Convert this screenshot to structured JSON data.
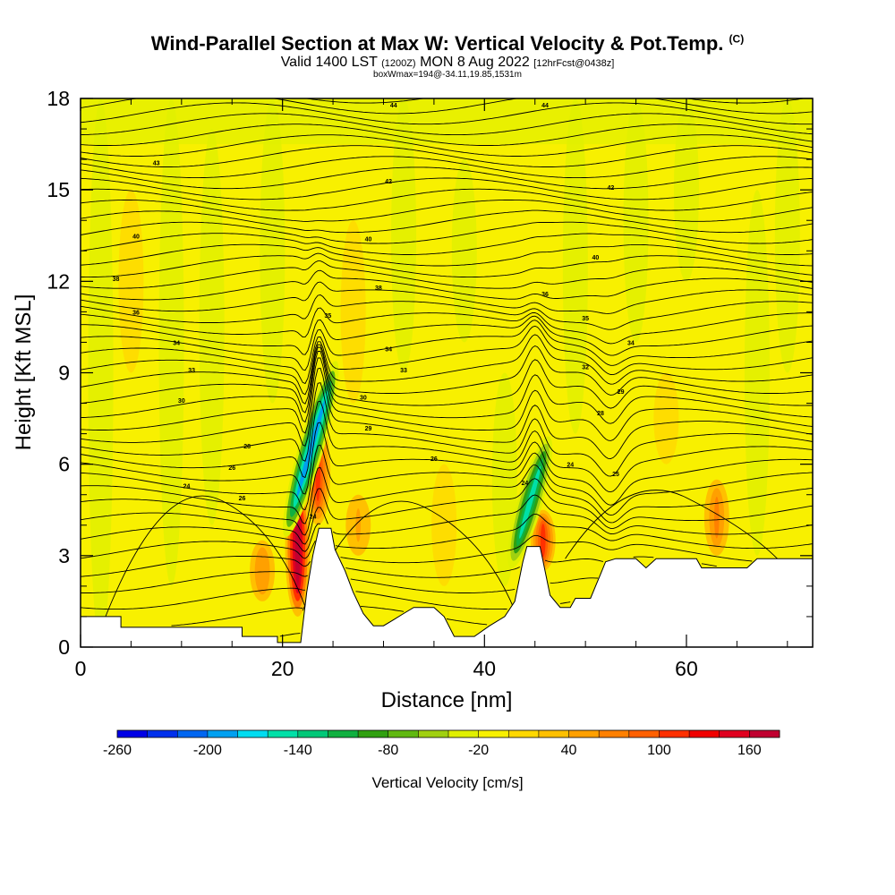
{
  "title": {
    "main": "Wind-Parallel Section at Max W: Vertical Velocity & Pot.Temp.",
    "copyright": "(C)",
    "valid_prefix": "Valid 1400 LST",
    "valid_utc": "(1200Z)",
    "valid_date": "MON 8 Aug 2022",
    "forecast": "[12hrFcst@0438z]",
    "box_info": "boxWmax=194@-34.11,19.85,1531m"
  },
  "chart_data": {
    "type": "heatmap",
    "title": "Wind-Parallel Section at Max W: Vertical Velocity & Pot.Temp.",
    "xlabel": "Distance [nm]",
    "ylabel": "Height [Kft MSL]",
    "xlim": [
      0,
      72.5
    ],
    "ylim": [
      0,
      18
    ],
    "x_ticks": [
      "0",
      "20",
      "40",
      "60"
    ],
    "y_ticks": [
      "0",
      "3",
      "6",
      "9",
      "12",
      "15",
      "18"
    ],
    "grid": false,
    "colorbar": {
      "label": "Vertical Velocity [cm/s]",
      "tick_labels": [
        "-260",
        "-200",
        "-140",
        "-80",
        "-20",
        "40",
        "100",
        "160"
      ],
      "colors": [
        "#0000e6",
        "#0030ec",
        "#0066f0",
        "#00a0f0",
        "#00dcf0",
        "#00e0a8",
        "#00c878",
        "#10b040",
        "#30a010",
        "#60b810",
        "#a0d010",
        "#e0f000",
        "#f8f000",
        "#ffd800",
        "#ffc000",
        "#ffa000",
        "#ff8000",
        "#ff6000",
        "#ff3000",
        "#f00000",
        "#e00020",
        "#c00030"
      ]
    },
    "terrain_kft": [
      [
        0,
        1.0
      ],
      [
        4,
        1.0
      ],
      [
        4,
        0.65
      ],
      [
        12,
        0.65
      ],
      [
        16,
        0.65
      ],
      [
        16,
        0.35
      ],
      [
        19.5,
        0.35
      ],
      [
        19.5,
        0.15
      ],
      [
        21.8,
        0.15
      ],
      [
        22.4,
        1.8
      ],
      [
        23.0,
        3.0
      ],
      [
        23.6,
        3.9
      ],
      [
        24.8,
        3.9
      ],
      [
        25.2,
        3.2
      ],
      [
        26.2,
        2.5
      ],
      [
        27.0,
        1.8
      ],
      [
        28.0,
        1.1
      ],
      [
        29.0,
        0.7
      ],
      [
        30.0,
        0.7
      ],
      [
        31.0,
        0.9
      ],
      [
        32.0,
        1.1
      ],
      [
        33.0,
        1.3
      ],
      [
        35.0,
        1.3
      ],
      [
        36.0,
        1.0
      ],
      [
        37.0,
        0.35
      ],
      [
        39.0,
        0.35
      ],
      [
        40.5,
        0.7
      ],
      [
        42.0,
        1.0
      ],
      [
        43.0,
        1.5
      ],
      [
        43.8,
        2.8
      ],
      [
        44.2,
        3.3
      ],
      [
        45.5,
        3.3
      ],
      [
        46.0,
        2.5
      ],
      [
        46.5,
        1.7
      ],
      [
        47.5,
        1.3
      ],
      [
        48.5,
        1.3
      ],
      [
        49.0,
        1.6
      ],
      [
        50.5,
        1.6
      ],
      [
        51.0,
        2.0
      ],
      [
        51.5,
        2.4
      ],
      [
        52.0,
        2.8
      ],
      [
        53.0,
        2.9
      ],
      [
        55.0,
        2.9
      ],
      [
        56.0,
        2.6
      ],
      [
        57.0,
        2.9
      ],
      [
        61.0,
        2.9
      ],
      [
        61.5,
        2.6
      ],
      [
        66.0,
        2.6
      ],
      [
        67.0,
        2.9
      ],
      [
        72.5,
        2.9
      ]
    ],
    "vertical_velocity_features": [
      {
        "kind": "updraft",
        "x": 21.5,
        "z_min": 1.0,
        "z_max": 5.5,
        "w_max": 194
      },
      {
        "kind": "updraft",
        "x": 23.5,
        "z_min": 4.0,
        "z_max": 7.5,
        "w_max": 100
      },
      {
        "kind": "updraft",
        "x": 45.8,
        "z_min": 2.5,
        "z_max": 4.5,
        "w_max": 100
      },
      {
        "kind": "downdraft",
        "x": 22.8,
        "z_min": 3.5,
        "z_max": 9.5,
        "w_min": -200
      },
      {
        "kind": "downdraft",
        "x": 44.5,
        "z_min": 2.5,
        "z_max": 7.0,
        "w_min": -160
      },
      {
        "kind": "updraft",
        "x": 63.0,
        "z_min": 3.0,
        "z_max": 5.5,
        "w_max": 60
      },
      {
        "kind": "updraft",
        "x": 18.0,
        "z_min": 1.5,
        "z_max": 3.5,
        "w_max": 50
      },
      {
        "kind": "updraft",
        "x": 27.5,
        "z_min": 3.0,
        "z_max": 5.0,
        "w_max": 40
      }
    ],
    "potential_temperature": {
      "units": "C",
      "contour_interval": 1,
      "surface_value": 22,
      "top_value": 44,
      "labels": [
        {
          "x": 7.5,
          "z": 15.9,
          "text": "43"
        },
        {
          "x": 30.5,
          "z": 15.3,
          "text": "42"
        },
        {
          "x": 52.5,
          "z": 15.1,
          "text": "42"
        },
        {
          "x": 31.0,
          "z": 17.8,
          "text": "44"
        },
        {
          "x": 46.0,
          "z": 17.8,
          "text": "44"
        },
        {
          "x": 5.5,
          "z": 13.5,
          "text": "40"
        },
        {
          "x": 28.5,
          "z": 13.4,
          "text": "40"
        },
        {
          "x": 51.0,
          "z": 12.8,
          "text": "40"
        },
        {
          "x": 3.5,
          "z": 12.1,
          "text": "38"
        },
        {
          "x": 29.5,
          "z": 11.8,
          "text": "38"
        },
        {
          "x": 46.0,
          "z": 11.6,
          "text": "36"
        },
        {
          "x": 5.5,
          "z": 11.0,
          "text": "36"
        },
        {
          "x": 24.5,
          "z": 10.9,
          "text": "35"
        },
        {
          "x": 50.0,
          "z": 10.8,
          "text": "35"
        },
        {
          "x": 9.5,
          "z": 10.0,
          "text": "34"
        },
        {
          "x": 30.5,
          "z": 9.8,
          "text": "34"
        },
        {
          "x": 54.5,
          "z": 10.0,
          "text": "34"
        },
        {
          "x": 11.0,
          "z": 9.1,
          "text": "33"
        },
        {
          "x": 32.0,
          "z": 9.1,
          "text": "33"
        },
        {
          "x": 50.0,
          "z": 9.2,
          "text": "32"
        },
        {
          "x": 10.0,
          "z": 8.1,
          "text": "30"
        },
        {
          "x": 28.0,
          "z": 8.2,
          "text": "30"
        },
        {
          "x": 53.5,
          "z": 8.4,
          "text": "29"
        },
        {
          "x": 51.5,
          "z": 7.7,
          "text": "28"
        },
        {
          "x": 28.5,
          "z": 7.2,
          "text": "29"
        },
        {
          "x": 16.5,
          "z": 6.6,
          "text": "28"
        },
        {
          "x": 35.0,
          "z": 6.2,
          "text": "26"
        },
        {
          "x": 15.0,
          "z": 5.9,
          "text": "26"
        },
        {
          "x": 48.5,
          "z": 6.0,
          "text": "24"
        },
        {
          "x": 10.5,
          "z": 5.3,
          "text": "24"
        },
        {
          "x": 44.0,
          "z": 5.4,
          "text": "24"
        },
        {
          "x": 53.0,
          "z": 5.7,
          "text": "25"
        },
        {
          "x": 16.0,
          "z": 4.9,
          "text": "26"
        },
        {
          "x": 23.0,
          "z": 4.3,
          "text": "24"
        }
      ]
    }
  }
}
